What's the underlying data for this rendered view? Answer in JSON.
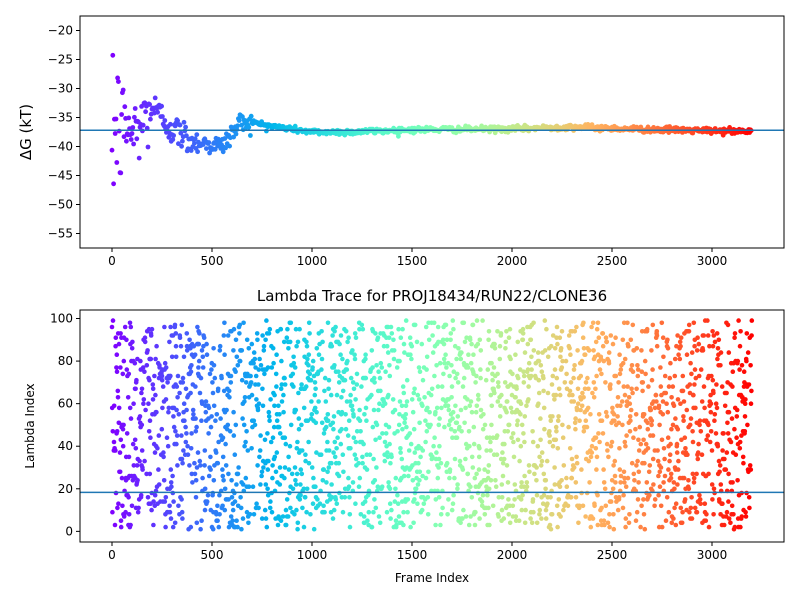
{
  "chart_data": [
    {
      "type": "scatter",
      "title": "",
      "xlabel": "",
      "ylabel": "ΔG (kT)",
      "xlim": [
        -160,
        3360
      ],
      "ylim": [
        -57.5,
        -17.5
      ],
      "xticks": [
        0,
        500,
        1000,
        1500,
        2000,
        2500,
        3000
      ],
      "yticks": [
        -55,
        -50,
        -45,
        -40,
        -35,
        -30,
        -25,
        -20
      ],
      "hline": -37.2,
      "n_points": 3200,
      "colormap": "rainbow (red at frame 0 → violet at frame 3200)",
      "hline_color": "#1f77b4",
      "trace_summary": {
        "frames": [
          0,
          25,
          50,
          100,
          150,
          200,
          300,
          400,
          550,
          650,
          800,
          1000,
          1200,
          1500,
          2000,
          2300,
          2600,
          3000,
          3200
        ],
        "delta_g": [
          -20.0,
          -40.0,
          -34.0,
          -38.0,
          -36.0,
          -33.0,
          -37.0,
          -39.0,
          -40.0,
          -35.5,
          -36.5,
          -37.5,
          -37.5,
          -37.1,
          -37.0,
          -36.6,
          -37.0,
          -37.3,
          -37.4
        ]
      }
    },
    {
      "type": "scatter",
      "title": "Lambda Trace for PROJ18434/RUN22/CLONE36",
      "xlabel": "Frame Index",
      "ylabel": "Lambda Index",
      "xlim": [
        -160,
        3360
      ],
      "ylim": [
        -5,
        104
      ],
      "xticks": [
        0,
        500,
        1000,
        1500,
        2000,
        2500,
        3000
      ],
      "yticks": [
        0,
        20,
        40,
        60,
        80,
        100
      ],
      "hline": 18.3,
      "n_points": 3200,
      "lambda_range": [
        1,
        99
      ],
      "colormap": "rainbow (red at frame 0 → violet at frame 3200)",
      "hline_color": "#1f77b4"
    }
  ]
}
